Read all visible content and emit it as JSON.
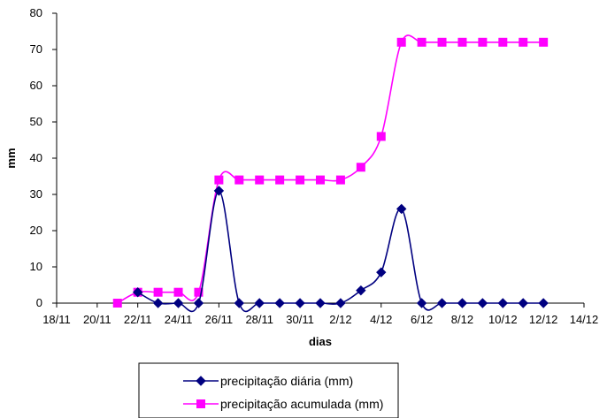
{
  "chart_data": {
    "type": "line",
    "xlabel": "dias",
    "ylabel": "mm",
    "ylim": [
      0,
      80
    ],
    "yticks": [
      0,
      10,
      20,
      30,
      40,
      50,
      60,
      70,
      80
    ],
    "xlim": [
      "18/11",
      "14/12"
    ],
    "xticks": [
      "18/11",
      "20/11",
      "22/11",
      "24/11",
      "26/11",
      "28/11",
      "30/11",
      "2/12",
      "4/12",
      "6/12",
      "8/12",
      "10/12",
      "12/12",
      "14/12"
    ],
    "grid": false,
    "legend_position": "bottom",
    "series": [
      {
        "name": "precipitação diária (mm)",
        "color": "#000080",
        "marker": "diamond",
        "points": [
          [
            "22/11",
            3
          ],
          [
            "23/11",
            0
          ],
          [
            "24/11",
            0
          ],
          [
            "25/11",
            0
          ],
          [
            "26/11",
            31
          ],
          [
            "27/11",
            0
          ],
          [
            "28/11",
            0
          ],
          [
            "29/11",
            0
          ],
          [
            "30/11",
            0
          ],
          [
            "1/12",
            0
          ],
          [
            "2/12",
            0
          ],
          [
            "3/12",
            3.5
          ],
          [
            "4/12",
            8.5
          ],
          [
            "5/12",
            26
          ],
          [
            "6/12",
            0
          ],
          [
            "7/12",
            0
          ],
          [
            "8/12",
            0
          ],
          [
            "9/12",
            0
          ],
          [
            "10/12",
            0
          ],
          [
            "11/12",
            0
          ],
          [
            "12/12",
            0
          ]
        ]
      },
      {
        "name": "precipitação acumulada (mm)",
        "color": "#FF00FF",
        "marker": "square",
        "points": [
          [
            "21/11",
            0
          ],
          [
            "22/11",
            3
          ],
          [
            "23/11",
            3
          ],
          [
            "24/11",
            3
          ],
          [
            "25/11",
            3
          ],
          [
            "26/11",
            34
          ],
          [
            "27/11",
            34
          ],
          [
            "28/11",
            34
          ],
          [
            "29/11",
            34
          ],
          [
            "30/11",
            34
          ],
          [
            "1/12",
            34
          ],
          [
            "2/12",
            34
          ],
          [
            "3/12",
            37.5
          ],
          [
            "4/12",
            46
          ],
          [
            "5/12",
            72
          ],
          [
            "6/12",
            72
          ],
          [
            "7/12",
            72
          ],
          [
            "8/12",
            72
          ],
          [
            "9/12",
            72
          ],
          [
            "10/12",
            72
          ],
          [
            "11/12",
            72
          ],
          [
            "12/12",
            72
          ]
        ]
      }
    ]
  }
}
